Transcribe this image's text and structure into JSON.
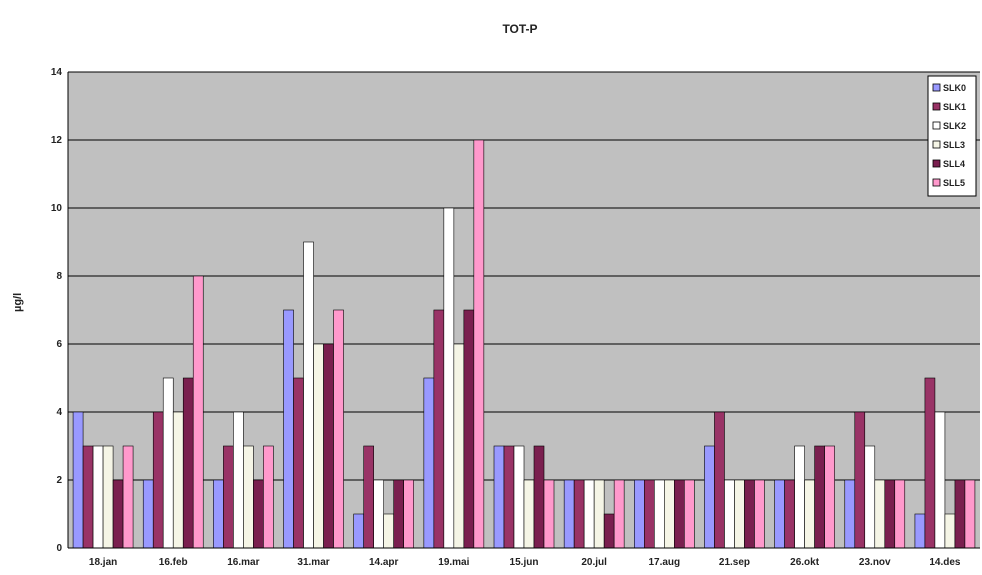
{
  "chart_data": {
    "type": "bar",
    "title": "TOT-P",
    "xlabel": "",
    "ylabel": "µg/l",
    "ylim": [
      0,
      14
    ],
    "yticks": [
      0,
      2,
      4,
      6,
      8,
      10,
      12,
      14
    ],
    "grid": true,
    "legend_position": "top-right",
    "categories": [
      "18.jan",
      "16.feb",
      "16.mar",
      "31.mar",
      "14.apr",
      "19.mai",
      "15.jun",
      "20.jul",
      "17.aug",
      "21.sep",
      "26.okt",
      "23.nov",
      "14.des"
    ],
    "series": [
      {
        "name": "SLK0",
        "color": "#9999ff",
        "values": [
          4,
          2,
          2,
          7,
          1,
          5,
          3,
          2,
          2,
          3,
          2,
          2,
          1
        ]
      },
      {
        "name": "SLK1",
        "color": "#993366",
        "values": [
          3,
          4,
          3,
          5,
          3,
          7,
          3,
          2,
          2,
          4,
          2,
          4,
          5
        ]
      },
      {
        "name": "SLK2",
        "color": "#ffffff",
        "values": [
          3,
          5,
          4,
          9,
          2,
          10,
          3,
          2,
          2,
          2,
          3,
          3,
          4
        ]
      },
      {
        "name": "SLL3",
        "color": "#f5f5e6",
        "values": [
          3,
          4,
          3,
          6,
          1,
          6,
          2,
          2,
          2,
          2,
          2,
          2,
          1
        ]
      },
      {
        "name": "SLL4",
        "color": "#7a1f4f",
        "values": [
          2,
          5,
          2,
          6,
          2,
          7,
          3,
          1,
          2,
          2,
          3,
          2,
          2
        ]
      },
      {
        "name": "SLL5",
        "color": "#ff99cc",
        "values": [
          3,
          8,
          3,
          7,
          2,
          12,
          2,
          2,
          2,
          2,
          3,
          2,
          2
        ]
      }
    ],
    "colors": {
      "plot_background": "#c0c0c0",
      "gridline": "#000000"
    }
  }
}
